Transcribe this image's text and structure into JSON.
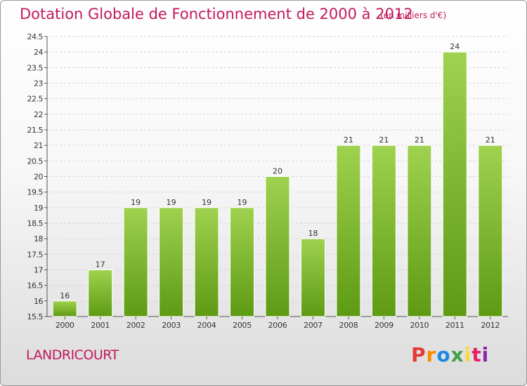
{
  "header": {
    "title": "Dotation Globale de Fonctionnement de 2000 à 2012",
    "subtitle": "(en milliers d'€)"
  },
  "footer": {
    "commune": "LANDRICOURT",
    "logo_text": "Proxiti"
  },
  "colors": {
    "title": "#c2185b",
    "bar_top": "#9fd24f",
    "bar_bottom": "#5e9a14",
    "logo_letters": [
      "#e53935",
      "#fb8c00",
      "#1e88e5",
      "#43a047",
      "#fdd835",
      "#e91e63",
      "#8e24aa"
    ]
  },
  "chart_data": {
    "type": "bar",
    "categories": [
      "2000",
      "2001",
      "2002",
      "2003",
      "2004",
      "2005",
      "2006",
      "2007",
      "2008",
      "2009",
      "2010",
      "2011",
      "2012"
    ],
    "values": [
      16,
      17,
      19,
      19,
      19,
      19,
      20,
      18,
      21,
      21,
      21,
      24,
      21
    ],
    "data_labels": [
      "16",
      "17",
      "19",
      "19",
      "19",
      "19",
      "20",
      "18",
      "21",
      "21",
      "21",
      "24",
      "21"
    ],
    "ylim": [
      15.5,
      24.5
    ],
    "yticks": [
      "15.5",
      "16",
      "16.5",
      "17",
      "17.5",
      "18",
      "18.5",
      "19",
      "19.5",
      "20",
      "20.5",
      "21",
      "21.5",
      "22",
      "22.5",
      "23",
      "23.5",
      "24",
      "24.5"
    ],
    "grid": true
  }
}
